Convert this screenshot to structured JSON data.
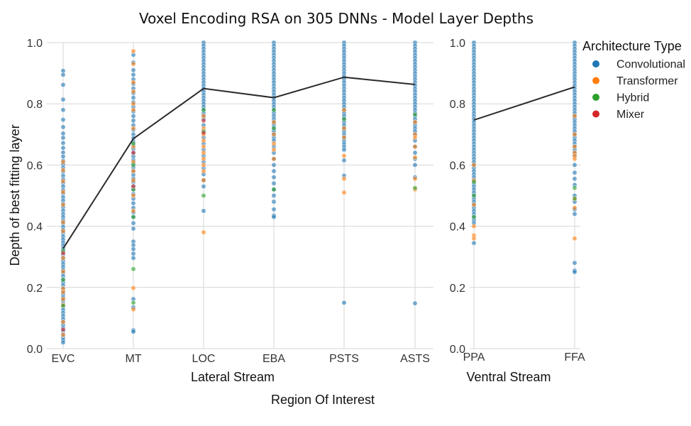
{
  "chart_data": {
    "type": "scatter",
    "title": "Voxel Encoding RSA on 305 DNNs - Model Layer Depths",
    "ylabel": "Depth of best fitting layer",
    "supxlabel": "Region Of Interest",
    "ylim": [
      0,
      1
    ],
    "yticks": [
      "0.0",
      "0.2",
      "0.4",
      "0.6",
      "0.8",
      "1.0"
    ],
    "grid": true,
    "legend": {
      "title": "Architecture Type",
      "placement": "top-right",
      "entries": [
        {
          "name": "Convolutional",
          "color": "#1f77b4"
        },
        {
          "name": "Transformer",
          "color": "#ff7f0e"
        },
        {
          "name": "Hybrid",
          "color": "#2ca02c"
        },
        {
          "name": "Mixer",
          "color": "#d62728"
        }
      ]
    },
    "panels": [
      {
        "xlabel": "Lateral Stream",
        "categories": [
          "EVC",
          "MT",
          "LOC",
          "EBA",
          "PSTS",
          "ASTS"
        ],
        "mean_line": [
          0.327,
          0.686,
          0.85,
          0.82,
          0.887,
          0.863
        ],
        "points": {
          "EVC": {
            "Convolutional": [
              0.908,
              0.895,
              0.862,
              0.814,
              0.78,
              0.748,
              0.724,
              0.703,
              0.689,
              0.672,
              0.656,
              0.641,
              0.628,
              0.614,
              0.602,
              0.591,
              0.578,
              0.565,
              0.553,
              0.541,
              0.53,
              0.518,
              0.507,
              0.495,
              0.484,
              0.473,
              0.462,
              0.451,
              0.44,
              0.43,
              0.419,
              0.409,
              0.398,
              0.388,
              0.378,
              0.367,
              0.357,
              0.347,
              0.337,
              0.327,
              0.317,
              0.307,
              0.297,
              0.287,
              0.277,
              0.267,
              0.257,
              0.247,
              0.237,
              0.227,
              0.217,
              0.207,
              0.197,
              0.187,
              0.177,
              0.167,
              0.157,
              0.147,
              0.137,
              0.127,
              0.117,
              0.107,
              0.097,
              0.087,
              0.077,
              0.067,
              0.057,
              0.047,
              0.037,
              0.028,
              0.02
            ],
            "Transformer": [
              0.61,
              0.583,
              0.547,
              0.512,
              0.47,
              0.413,
              0.384,
              0.296,
              0.252,
              0.196,
              0.185,
              0.162,
              0.143,
              0.087,
              0.045
            ],
            "Hybrid": [
              0.32,
              0.225,
              0.14
            ],
            "Mixer": [
              0.312,
              0.062
            ]
          },
          "MT": {
            "Convolutional": [
              0.96,
              0.935,
              0.91,
              0.895,
              0.88,
              0.865,
              0.85,
              0.835,
              0.82,
              0.805,
              0.79,
              0.775,
              0.76,
              0.745,
              0.73,
              0.715,
              0.7,
              0.688,
              0.676,
              0.664,
              0.652,
              0.64,
              0.628,
              0.616,
              0.604,
              0.592,
              0.58,
              0.568,
              0.556,
              0.544,
              0.532,
              0.52,
              0.505,
              0.49,
              0.475,
              0.46,
              0.445,
              0.43,
              0.41,
              0.392,
              0.35,
              0.338,
              0.325,
              0.31,
              0.296,
              0.162,
              0.135,
              0.06,
              0.055
            ],
            "Transformer": [
              0.972,
              0.93,
              0.87,
              0.84,
              0.8,
              0.78,
              0.72,
              0.66,
              0.61,
              0.58,
              0.55,
              0.5,
              0.45,
              0.198,
              0.128
            ],
            "Hybrid": [
              0.67,
              0.6,
              0.52,
              0.43,
              0.26,
              0.15
            ],
            "Mixer": [
              0.64,
              0.53
            ]
          },
          "LOC": {
            "Convolutional": [
              1.0,
              0.99,
              0.98,
              0.97,
              0.96,
              0.95,
              0.94,
              0.93,
              0.92,
              0.91,
              0.9,
              0.89,
              0.88,
              0.87,
              0.86,
              0.85,
              0.84,
              0.83,
              0.82,
              0.81,
              0.8,
              0.79,
              0.78,
              0.77,
              0.76,
              0.75,
              0.73,
              0.71,
              0.69,
              0.67,
              0.65,
              0.63,
              0.61,
              0.59,
              0.57,
              0.55,
              0.53,
              0.45
            ],
            "Transformer": [
              0.76,
              0.72,
              0.7,
              0.68,
              0.66,
              0.64,
              0.62,
              0.6,
              0.58,
              0.55,
              0.38
            ],
            "Hybrid": [
              0.78,
              0.71,
              0.5
            ],
            "Mixer": [
              0.745,
              0.705
            ]
          },
          "EBA": {
            "Convolutional": [
              1.0,
              0.99,
              0.98,
              0.97,
              0.96,
              0.95,
              0.94,
              0.93,
              0.92,
              0.91,
              0.9,
              0.89,
              0.88,
              0.87,
              0.86,
              0.85,
              0.84,
              0.83,
              0.82,
              0.81,
              0.8,
              0.79,
              0.78,
              0.77,
              0.76,
              0.75,
              0.74,
              0.73,
              0.72,
              0.71,
              0.7,
              0.69,
              0.68,
              0.66,
              0.64,
              0.62,
              0.6,
              0.58,
              0.56,
              0.54,
              0.52,
              0.5,
              0.48,
              0.455,
              0.435,
              0.43
            ],
            "Transformer": [
              0.74,
              0.7,
              0.67,
              0.65,
              0.62
            ],
            "Hybrid": [
              0.78,
              0.72,
              0.52
            ]
          },
          "PSTS": {
            "Convolutional": [
              1.0,
              0.99,
              0.98,
              0.97,
              0.96,
              0.95,
              0.94,
              0.93,
              0.92,
              0.91,
              0.9,
              0.89,
              0.88,
              0.87,
              0.86,
              0.85,
              0.84,
              0.83,
              0.82,
              0.81,
              0.8,
              0.79,
              0.78,
              0.77,
              0.76,
              0.75,
              0.74,
              0.73,
              0.72,
              0.71,
              0.7,
              0.69,
              0.68,
              0.67,
              0.66,
              0.65,
              0.615,
              0.565,
              0.15
            ],
            "Transformer": [
              0.78,
              0.72,
              0.69,
              0.63,
              0.555,
              0.51
            ],
            "Hybrid": [
              0.75
            ]
          },
          "ASTS": {
            "Convolutional": [
              1.0,
              0.99,
              0.98,
              0.97,
              0.96,
              0.95,
              0.94,
              0.93,
              0.92,
              0.91,
              0.9,
              0.89,
              0.88,
              0.87,
              0.86,
              0.85,
              0.84,
              0.83,
              0.82,
              0.81,
              0.8,
              0.79,
              0.78,
              0.77,
              0.76,
              0.75,
              0.74,
              0.73,
              0.72,
              0.71,
              0.7,
              0.68,
              0.66,
              0.64,
              0.62,
              0.6,
              0.56,
              0.148
            ],
            "Transformer": [
              0.74,
              0.7,
              0.69,
              0.66,
              0.625,
              0.555,
              0.52
            ],
            "Hybrid": [
              0.765,
              0.525
            ]
          }
        }
      },
      {
        "xlabel": "Ventral Stream",
        "categories": [
          "PPA",
          "FFA"
        ],
        "mean_line": [
          0.747,
          0.855
        ],
        "points": {
          "PPA": {
            "Convolutional": [
              1.0,
              0.99,
              0.98,
              0.97,
              0.96,
              0.95,
              0.94,
              0.93,
              0.92,
              0.91,
              0.9,
              0.89,
              0.88,
              0.87,
              0.86,
              0.85,
              0.84,
              0.83,
              0.82,
              0.81,
              0.8,
              0.79,
              0.78,
              0.77,
              0.76,
              0.75,
              0.74,
              0.73,
              0.72,
              0.71,
              0.7,
              0.69,
              0.68,
              0.67,
              0.66,
              0.65,
              0.64,
              0.63,
              0.62,
              0.61,
              0.6,
              0.59,
              0.58,
              0.57,
              0.56,
              0.55,
              0.54,
              0.53,
              0.52,
              0.51,
              0.5,
              0.49,
              0.48,
              0.47,
              0.46,
              0.45,
              0.44,
              0.43,
              0.42,
              0.41,
              0.345
            ],
            "Transformer": [
              0.6,
              0.55,
              0.47,
              0.4,
              0.37,
              0.36
            ],
            "Hybrid": [
              0.545,
              0.5,
              0.43
            ]
          },
          "FFA": {
            "Convolutional": [
              1.0,
              0.99,
              0.98,
              0.97,
              0.96,
              0.95,
              0.94,
              0.93,
              0.92,
              0.91,
              0.9,
              0.89,
              0.88,
              0.87,
              0.86,
              0.85,
              0.84,
              0.83,
              0.82,
              0.81,
              0.8,
              0.79,
              0.78,
              0.77,
              0.76,
              0.75,
              0.74,
              0.73,
              0.72,
              0.71,
              0.7,
              0.69,
              0.68,
              0.67,
              0.66,
              0.65,
              0.64,
              0.63,
              0.6,
              0.575,
              0.555,
              0.535,
              0.5,
              0.48,
              0.455,
              0.44,
              0.28,
              0.255,
              0.25
            ],
            "Transformer": [
              0.76,
              0.7,
              0.66,
              0.64,
              0.63,
              0.62,
              0.49,
              0.46,
              0.36
            ],
            "Hybrid": [
              0.525,
              0.49
            ]
          }
        }
      }
    ]
  }
}
